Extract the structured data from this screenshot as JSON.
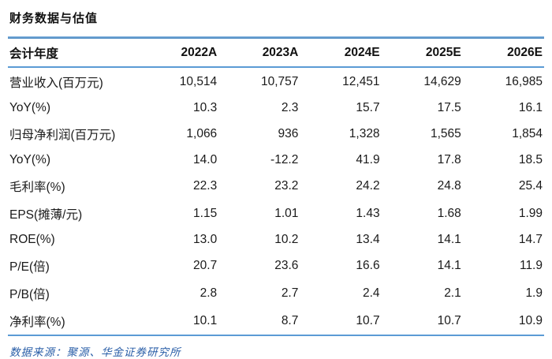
{
  "title": "财务数据与估值",
  "table": {
    "header": [
      "会计年度",
      "2022A",
      "2023A",
      "2024E",
      "2025E",
      "2026E"
    ],
    "rows": [
      {
        "label": "营业收入(百万元)",
        "values": [
          "10,514",
          "10,757",
          "12,451",
          "14,629",
          "16,985"
        ]
      },
      {
        "label": "YoY(%)",
        "values": [
          "10.3",
          "2.3",
          "15.7",
          "17.5",
          "16.1"
        ]
      },
      {
        "label": "归母净利润(百万元)",
        "values": [
          "1,066",
          "936",
          "1,328",
          "1,565",
          "1,854"
        ]
      },
      {
        "label": "YoY(%)",
        "values": [
          "14.0",
          "-12.2",
          "41.9",
          "17.8",
          "18.5"
        ]
      },
      {
        "label": "毛利率(%)",
        "values": [
          "22.3",
          "23.2",
          "24.2",
          "24.8",
          "25.4"
        ]
      },
      {
        "label": "EPS(摊薄/元)",
        "values": [
          "1.15",
          "1.01",
          "1.43",
          "1.68",
          "1.99"
        ]
      },
      {
        "label": "ROE(%)",
        "values": [
          "13.0",
          "10.2",
          "13.4",
          "14.1",
          "14.7"
        ]
      },
      {
        "label": "P/E(倍)",
        "values": [
          "20.7",
          "23.6",
          "16.6",
          "14.1",
          "11.9"
        ]
      },
      {
        "label": "P/B(倍)",
        "values": [
          "2.8",
          "2.7",
          "2.4",
          "2.1",
          "1.9"
        ]
      },
      {
        "label": "净利率(%)",
        "values": [
          "10.1",
          "8.7",
          "10.7",
          "10.7",
          "10.9"
        ]
      }
    ]
  },
  "footer": {
    "source_text": "数据来源：聚源、华金证券研究所"
  },
  "colors": {
    "top_rule": "#2e75b6",
    "header_rule": "#5b9bd5",
    "bottom_rule": "#5b9bd5",
    "source_text": "#2b5fa8",
    "body_text": "#1a1a1a"
  }
}
